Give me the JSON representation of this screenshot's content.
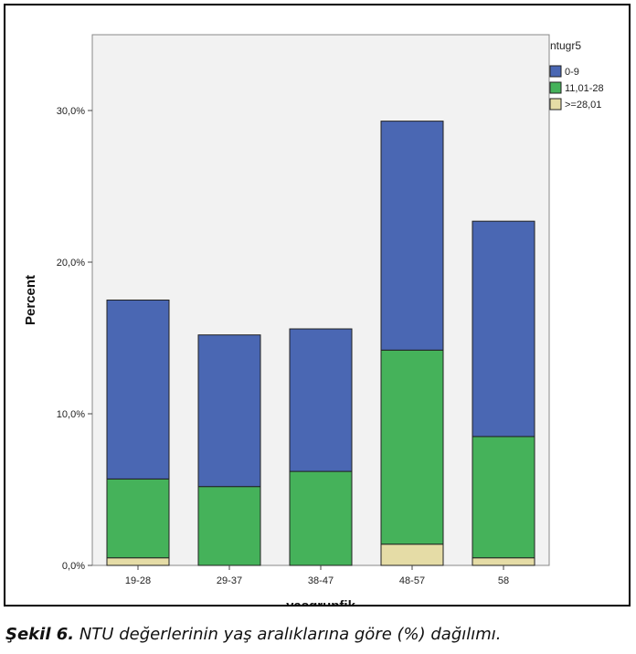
{
  "chart_data": {
    "type": "bar",
    "stacked": true,
    "categories": [
      "19-28",
      "29-37",
      "38-47",
      "48-57",
      "58"
    ],
    "series": [
      {
        "name": "0-9",
        "color": "#4a67b3",
        "values": [
          11.8,
          10.0,
          9.4,
          15.1,
          14.2
        ]
      },
      {
        "name": "11,01-28",
        "color": "#45b25a",
        "values": [
          5.2,
          5.2,
          6.2,
          12.8,
          8.0
        ]
      },
      {
        "name": ">=28,01",
        "color": "#e5dca6",
        "values": [
          0.5,
          0.0,
          0.0,
          1.4,
          0.5
        ]
      }
    ],
    "ylabel": "Percent",
    "xlabel": "yasgrupfik",
    "ylim": [
      0,
      35
    ],
    "yticks": [
      0,
      10,
      20,
      30
    ],
    "ytick_labels": [
      "0,0%",
      "10,0%",
      "20,0%",
      "30,0%"
    ],
    "legend_title": "ntugr5",
    "legend_position": "top-right",
    "grid": false,
    "plot_background": "#f2f2f2"
  },
  "caption": {
    "label": "Şekil 6.",
    "text": " NTU değerlerinin yaş aralıklarına göre (%) dağılımı."
  }
}
